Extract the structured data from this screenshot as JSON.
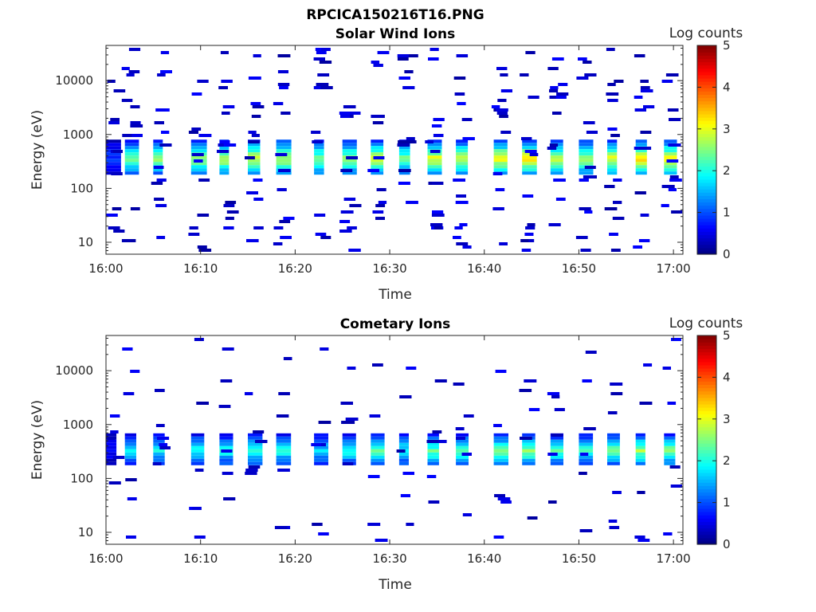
{
  "figure": {
    "filename": "RPCICA150216T16.PNG"
  },
  "chart_data": [
    {
      "type": "heatmap",
      "title": "Solar Wind Ions",
      "xlabel": "Time",
      "ylabel": "Energy (eV)",
      "x_ticks": [
        "16:00",
        "16:10",
        "16:20",
        "16:30",
        "16:40",
        "16:50",
        "17:00"
      ],
      "x_range": [
        "16:00",
        "17:01"
      ],
      "y_scale": "log",
      "y_ticks": [
        10,
        100,
        1000,
        10000
      ],
      "y_tick_labels": [
        "10",
        "100",
        "1000",
        "10000"
      ],
      "y_range": [
        6,
        45000
      ],
      "colorbar": {
        "label": "Log counts",
        "ticks": [
          0,
          1,
          2,
          3,
          4,
          5
        ],
        "colormap": "jet",
        "range": [
          0,
          5
        ]
      },
      "main_band": {
        "energy_low_eV": 200,
        "energy_high_eV": 700,
        "peak_log_counts": 3.4
      },
      "sweeps": [
        {
          "t": "16:00",
          "peak": 1.0
        },
        {
          "t": "16:02",
          "peak": 2.5
        },
        {
          "t": "16:05",
          "peak": 2.6
        },
        {
          "t": "16:09",
          "peak": 2.7
        },
        {
          "t": "16:12",
          "peak": 2.9
        },
        {
          "t": "16:15",
          "peak": 3.0
        },
        {
          "t": "16:18",
          "peak": 2.9
        },
        {
          "t": "16:22",
          "peak": 2.6
        },
        {
          "t": "16:25",
          "peak": 2.7
        },
        {
          "t": "16:28",
          "peak": 3.0
        },
        {
          "t": "16:31",
          "peak": 2.5
        },
        {
          "t": "16:34",
          "peak": 3.1
        },
        {
          "t": "16:37",
          "peak": 3.0
        },
        {
          "t": "16:41",
          "peak": 3.2
        },
        {
          "t": "16:44",
          "peak": 3.4
        },
        {
          "t": "16:47",
          "peak": 2.9
        },
        {
          "t": "16:50",
          "peak": 2.8
        },
        {
          "t": "16:53",
          "peak": 3.1
        },
        {
          "t": "16:56",
          "peak": 3.3
        },
        {
          "t": "16:59",
          "peak": 3.2
        }
      ]
    },
    {
      "type": "heatmap",
      "title": "Cometary Ions",
      "xlabel": "Time",
      "ylabel": "Energy (eV)",
      "x_ticks": [
        "16:00",
        "16:10",
        "16:20",
        "16:30",
        "16:40",
        "16:50",
        "17:00"
      ],
      "x_range": [
        "16:00",
        "17:01"
      ],
      "y_scale": "log",
      "y_ticks": [
        10,
        100,
        1000,
        10000
      ],
      "y_tick_labels": [
        "10",
        "100",
        "1000",
        "10000"
      ],
      "y_range": [
        6,
        45000
      ],
      "colorbar": {
        "label": "Log counts",
        "ticks": [
          0,
          1,
          2,
          3,
          4,
          5
        ],
        "colormap": "jet",
        "range": [
          0,
          5
        ]
      },
      "main_band": {
        "energy_low_eV": 200,
        "energy_high_eV": 600,
        "peak_log_counts": 2.8
      },
      "sweeps": [
        {
          "t": "16:00",
          "peak": 0.6
        },
        {
          "t": "16:02",
          "peak": 1.8
        },
        {
          "t": "16:05",
          "peak": 1.9
        },
        {
          "t": "16:09",
          "peak": 2.0
        },
        {
          "t": "16:12",
          "peak": 2.0
        },
        {
          "t": "16:15",
          "peak": 2.2
        },
        {
          "t": "16:18",
          "peak": 2.1
        },
        {
          "t": "16:22",
          "peak": 1.8
        },
        {
          "t": "16:25",
          "peak": 2.0
        },
        {
          "t": "16:28",
          "peak": 2.3
        },
        {
          "t": "16:31",
          "peak": 2.0
        },
        {
          "t": "16:34",
          "peak": 2.4
        },
        {
          "t": "16:37",
          "peak": 2.4
        },
        {
          "t": "16:41",
          "peak": 2.5
        },
        {
          "t": "16:44",
          "peak": 2.6
        },
        {
          "t": "16:47",
          "peak": 2.3
        },
        {
          "t": "16:50",
          "peak": 2.2
        },
        {
          "t": "16:53",
          "peak": 2.5
        },
        {
          "t": "16:56",
          "peak": 2.7
        },
        {
          "t": "16:59",
          "peak": 2.6
        }
      ]
    }
  ]
}
